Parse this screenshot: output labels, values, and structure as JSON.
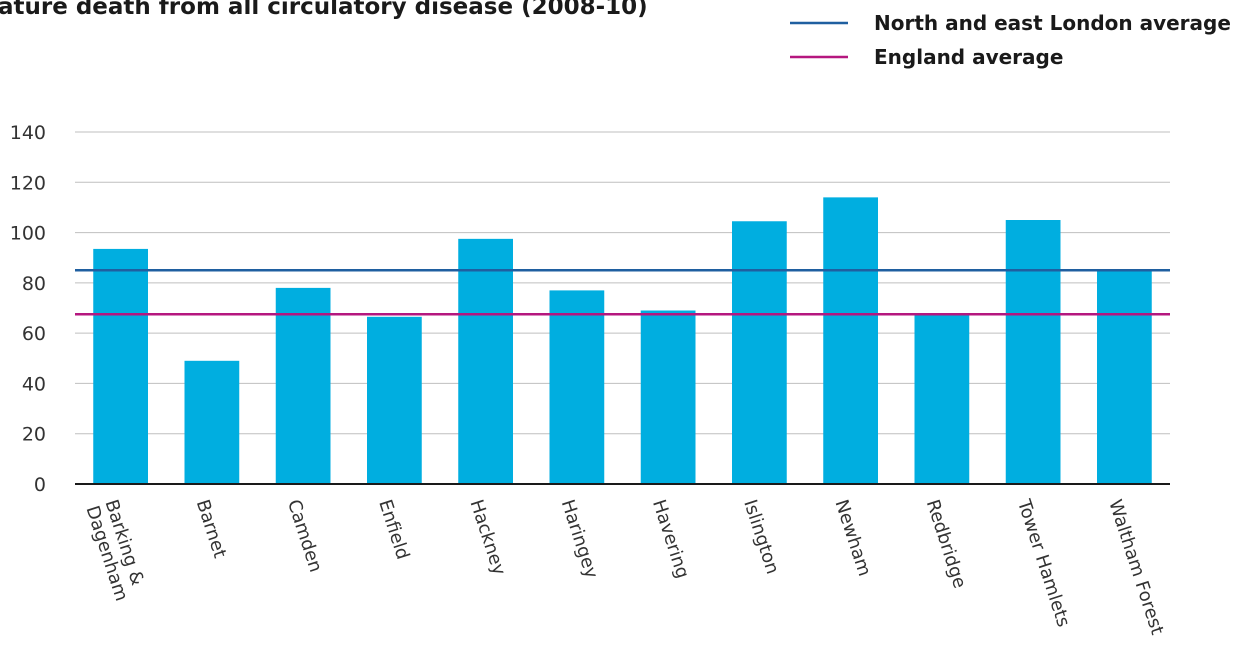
{
  "chart_data": {
    "type": "bar",
    "title": "ature death from all circulatory disease (2008-10)",
    "xlabel": "",
    "ylabel": "",
    "ylim": [
      0,
      140
    ],
    "yticks": [
      0,
      20,
      40,
      60,
      80,
      100,
      120,
      140
    ],
    "grid": true,
    "legend_position": "top-right",
    "categories": [
      "Barking & Dagenham",
      "Barnet",
      "Camden",
      "Enfield",
      "Hackney",
      "Haringey",
      "Havering",
      "Islington",
      "Newham",
      "Redbridge",
      "Tower Hamlets",
      "Waltham Forest"
    ],
    "series": [
      {
        "values": [
          93.5,
          49,
          78,
          66.5,
          97.5,
          77,
          69,
          104.5,
          114,
          67.5,
          105,
          85.5
        ],
        "color": "#00aee0"
      }
    ],
    "reference_lines": [
      {
        "name": "North and east London average",
        "value": 85,
        "color": "#1f5fa0"
      },
      {
        "name": "England average",
        "value": 67.5,
        "color": "#b5177f"
      }
    ]
  },
  "colors": {
    "grid": "#bfbfbf",
    "axis": "#1a1a1a",
    "bar": "#00aee0"
  }
}
